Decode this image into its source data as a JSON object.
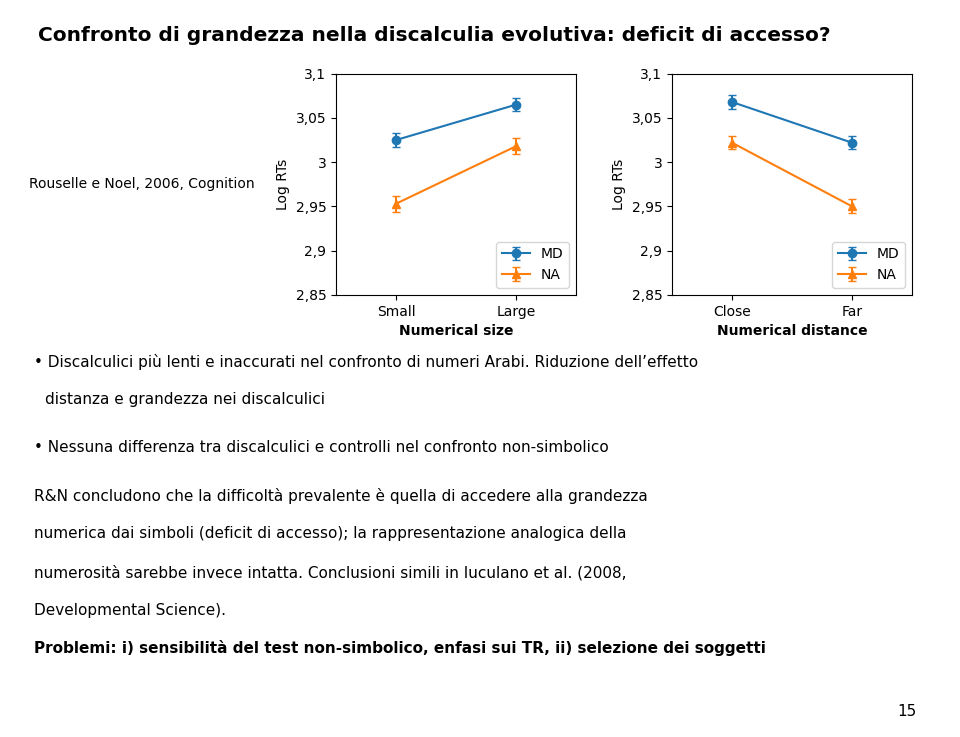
{
  "title": "Confronto di grandezza nella discalculia evolutiva: deficit di accesso?",
  "subtitle": "Rouselle e Noel, 2006, Cognition",
  "annotations": [
    "• Discalculici più lenti e inaccurati nel confronto di numeri Arabi. Riduzione dell’effetto",
    "distanza e grandezza nei discalculici",
    "• Nessuna differenza tra discalculici e controlli nel confronto non-simbolico",
    "R&N concludono che la difficoltà prevalente è quella di accedere alla grandezza",
    "numerica dai simboli (deficit di accesso); la rappresentazione analogica della",
    "numerosità sarebbe invece intatta. Conclusioni simili in Iuculano et al. (2008,",
    "Developmental Science)."
  ],
  "footer": "Problemi: i) sensibilità del test non-simbolico, enfasi sui TR, ii) selezione dei soggetti",
  "page": "15",
  "chart_data": [
    {
      "type": "line",
      "xlabel": "Numerical size",
      "ylabel": "Log RTs",
      "categories": [
        "Small",
        "Large"
      ],
      "series": [
        {
          "name": "MD",
          "marker": "o",
          "values": [
            3.025,
            3.065
          ],
          "errors": [
            0.008,
            0.007
          ]
        },
        {
          "name": "NA",
          "marker": "^",
          "values": [
            2.953,
            3.018
          ],
          "errors": [
            0.009,
            0.009
          ]
        }
      ],
      "ylim": [
        2.85,
        3.1
      ],
      "yticks": [
        {
          "value": 2.85,
          "label": "2,85"
        },
        {
          "value": 2.9,
          "label": "2,9"
        },
        {
          "value": 2.95,
          "label": "2,95"
        },
        {
          "value": 3.0,
          "label": "3"
        },
        {
          "value": 3.05,
          "label": "3,05"
        },
        {
          "value": 3.1,
          "label": "3,1"
        }
      ],
      "legend": "lower right"
    },
    {
      "type": "line",
      "xlabel": "Numerical distance",
      "ylabel": "Log RTs",
      "categories": [
        "Close",
        "Far"
      ],
      "series": [
        {
          "name": "MD",
          "marker": "o",
          "values": [
            3.068,
            3.022
          ],
          "errors": [
            0.008,
            0.007
          ]
        },
        {
          "name": "NA",
          "marker": "^",
          "values": [
            3.022,
            2.95
          ],
          "errors": [
            0.007,
            0.008
          ]
        }
      ],
      "ylim": [
        2.85,
        3.1
      ],
      "yticks": [
        {
          "value": 2.85,
          "label": "2,85"
        },
        {
          "value": 2.9,
          "label": "2,9"
        },
        {
          "value": 2.95,
          "label": "2,95"
        },
        {
          "value": 3.0,
          "label": "3"
        },
        {
          "value": 3.05,
          "label": "3,05"
        },
        {
          "value": 3.1,
          "label": "3,1"
        }
      ],
      "legend": "lower right"
    }
  ]
}
